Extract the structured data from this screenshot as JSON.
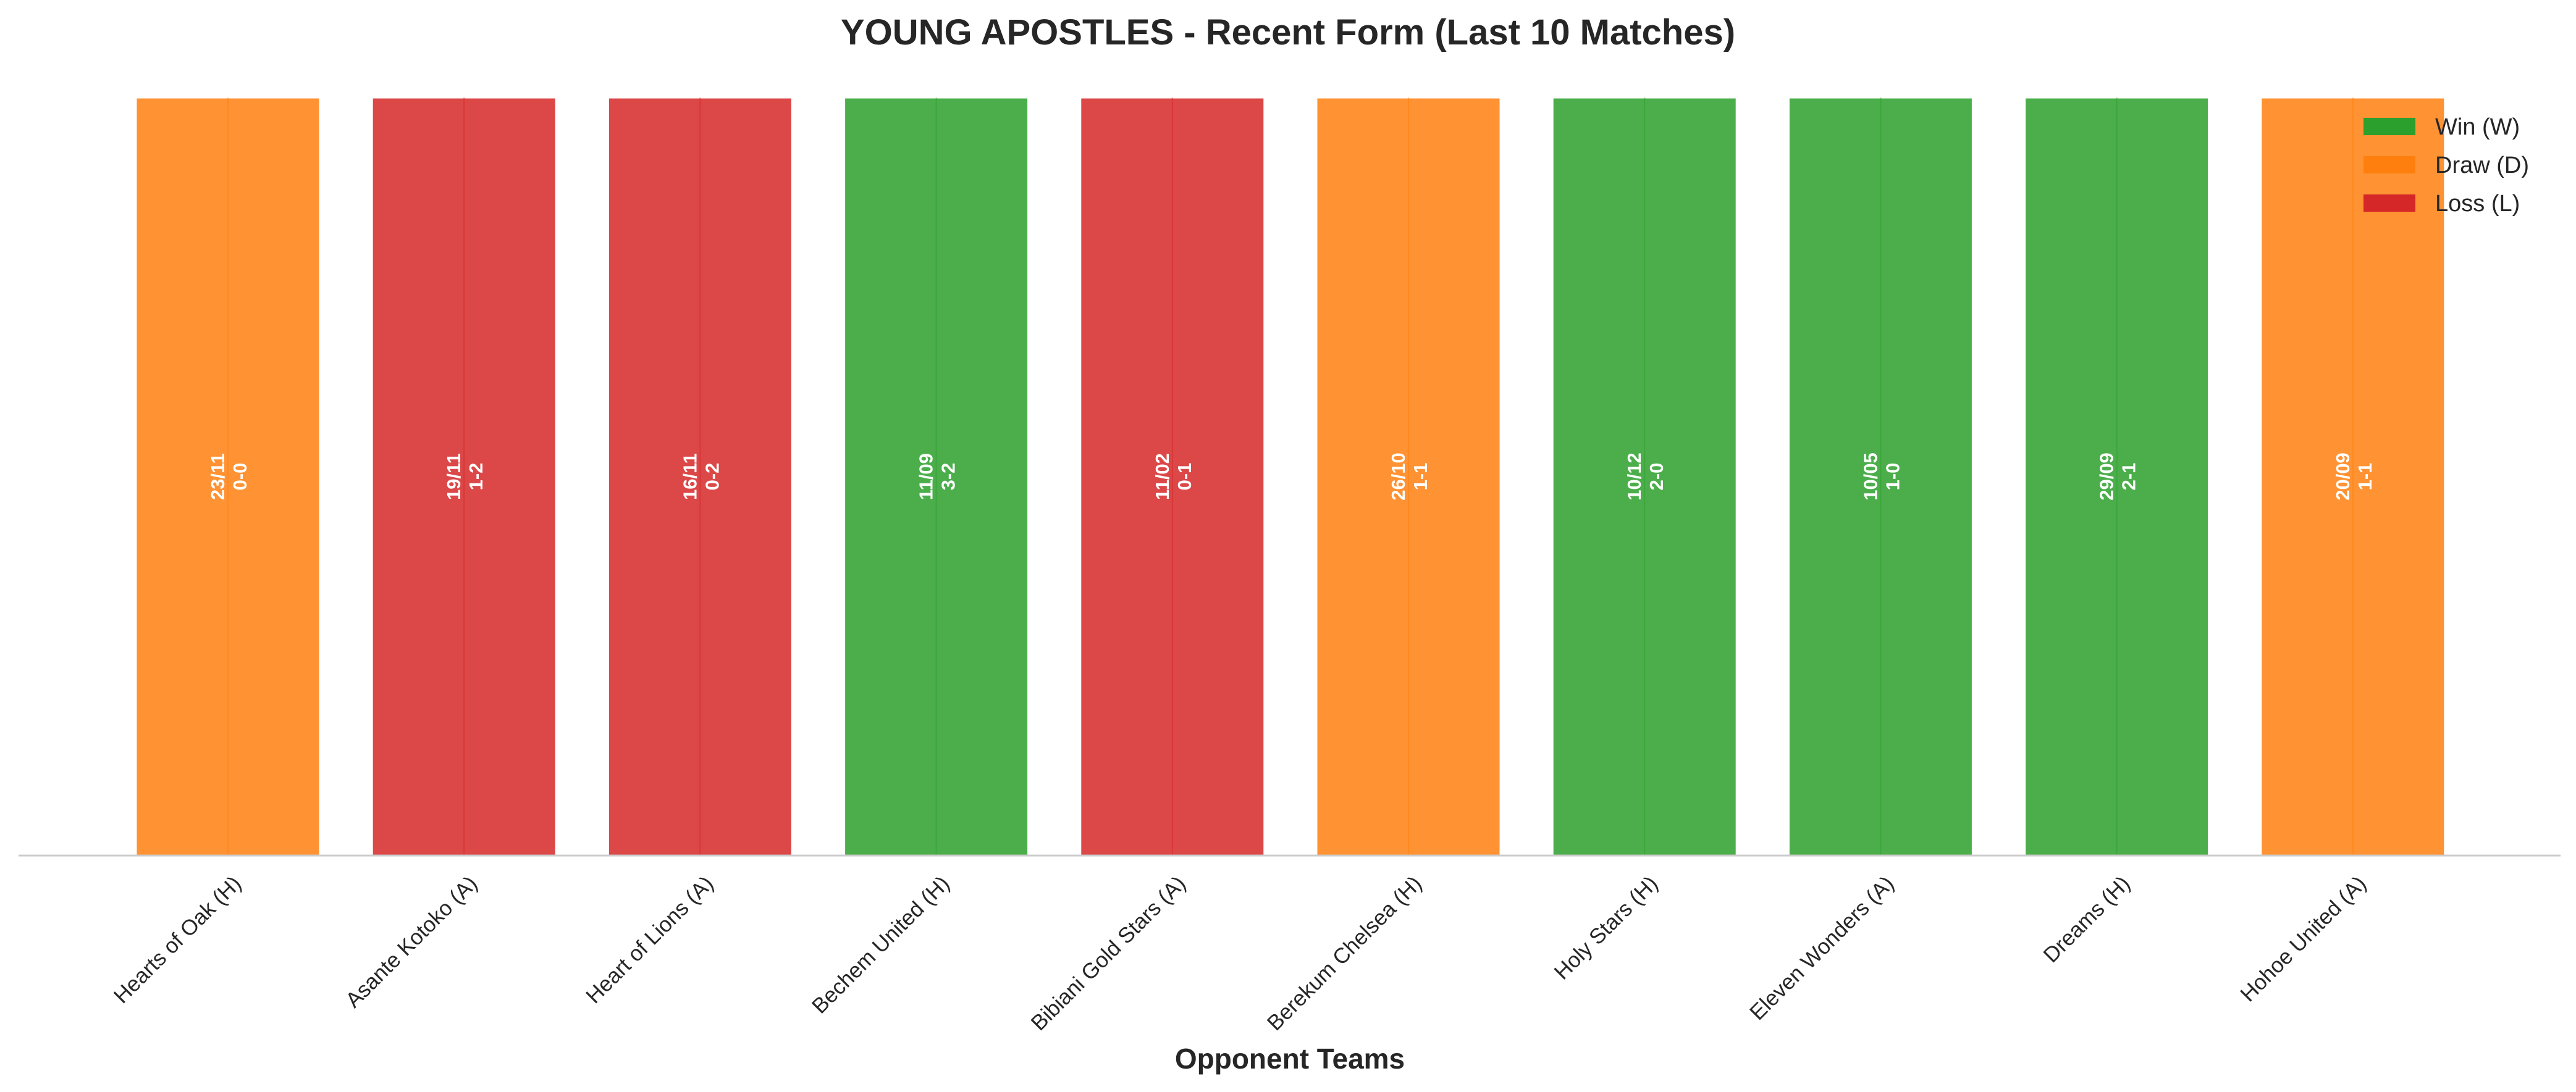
{
  "chart_data": {
    "type": "bar",
    "title": "YOUNG APOSTLES - Recent Form (Last 10 Matches)",
    "xlabel": "Opponent Teams",
    "ylabel": "",
    "ylim": [
      0,
      1
    ],
    "grid": false,
    "legend_position": "top-right",
    "legend": [
      {
        "result": "W",
        "label": "Win (W)",
        "color": "#2ca02c"
      },
      {
        "result": "D",
        "label": "Draw (D)",
        "color": "#ff7f0e"
      },
      {
        "result": "L",
        "label": "Loss (L)",
        "color": "#d62728"
      }
    ],
    "categories": [
      "Hearts of Oak (H)",
      "Asante Kotoko (A)",
      "Heart of Lions (A)",
      "Bechem United (H)",
      "Bibiani Gold Stars (A)",
      "Berekum Chelsea (H)",
      "Holy Stars (H)",
      "Eleven Wonders (A)",
      "Dreams (H)",
      "Hohoe United (A)"
    ],
    "values": [
      1,
      1,
      1,
      1,
      1,
      1,
      1,
      1,
      1,
      1
    ],
    "results": [
      "D",
      "L",
      "L",
      "W",
      "L",
      "D",
      "W",
      "W",
      "W",
      "D"
    ],
    "dates": [
      "23/11",
      "19/11",
      "16/11",
      "11/09",
      "11/02",
      "26/10",
      "10/12",
      "10/05",
      "29/09",
      "20/09"
    ],
    "scores": [
      "0-0",
      "1-2",
      "0-2",
      "3-2",
      "0-1",
      "1-1",
      "2-0",
      "1-0",
      "2-1",
      "1-1"
    ]
  }
}
